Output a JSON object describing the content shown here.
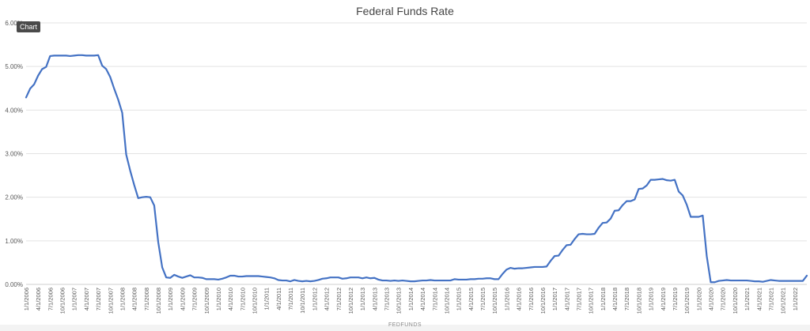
{
  "tooltip": "Chart",
  "colors": {
    "line": "#4472C4",
    "grid": "#e3e3e3",
    "text": "#595959"
  },
  "chart_data": {
    "type": "line",
    "title": "Federal Funds Rate",
    "xlabel": "FEDFUNDS",
    "ylabel": "",
    "ylim": [
      0,
      6
    ],
    "y_ticks": [
      "0.00%",
      "1.00%",
      "2.00%",
      "3.00%",
      "4.00%",
      "5.00%",
      "6.00%"
    ],
    "grid": true,
    "x_tick_labels": [
      "1/1/2006",
      "4/1/2006",
      "7/1/2006",
      "10/1/2006",
      "1/1/2007",
      "4/1/2007",
      "7/1/2007",
      "10/1/2007",
      "1/1/2008",
      "4/1/2008",
      "7/1/2008",
      "10/1/2008",
      "1/1/2009",
      "4/1/2009",
      "7/1/2009",
      "10/1/2009",
      "1/1/2010",
      "4/1/2010",
      "7/1/2010",
      "10/1/2010",
      "1/1/2011",
      "4/1/2011",
      "7/1/2011",
      "10/1/2011",
      "1/1/2012",
      "4/1/2012",
      "7/1/2012",
      "10/1/2012",
      "1/1/2013",
      "4/1/2013",
      "7/1/2013",
      "10/1/2013",
      "1/1/2014",
      "4/1/2014",
      "7/1/2014",
      "10/1/2014",
      "1/1/2015",
      "4/1/2015",
      "7/1/2015",
      "10/1/2015",
      "1/1/2016",
      "4/1/2016",
      "7/1/2016",
      "10/1/2016",
      "1/1/2017",
      "4/1/2017",
      "7/1/2017",
      "10/1/2017",
      "1/1/2018",
      "4/1/2018",
      "7/1/2018",
      "10/1/2018",
      "1/1/2019",
      "4/1/2019",
      "7/1/2019",
      "10/1/2019",
      "1/1/2020",
      "4/1/2020",
      "7/1/2020",
      "10/1/2020",
      "1/1/2021",
      "4/1/2021",
      "7/1/2021",
      "10/1/2021",
      "1/1/2022"
    ],
    "series": [
      {
        "values": [
          4.29,
          4.49,
          4.59,
          4.79,
          4.94,
          4.99,
          5.24,
          5.25,
          5.25,
          5.25,
          5.25,
          5.24,
          5.25,
          5.26,
          5.26,
          5.25,
          5.25,
          5.25,
          5.26,
          5.02,
          4.94,
          4.76,
          4.49,
          4.24,
          3.94,
          2.98,
          2.61,
          2.28,
          1.98,
          2.0,
          2.01,
          2.0,
          1.81,
          0.97,
          0.39,
          0.16,
          0.15,
          0.22,
          0.18,
          0.15,
          0.18,
          0.21,
          0.16,
          0.16,
          0.15,
          0.12,
          0.12,
          0.12,
          0.11,
          0.13,
          0.16,
          0.2,
          0.2,
          0.18,
          0.18,
          0.19,
          0.19,
          0.19,
          0.19,
          0.18,
          0.17,
          0.16,
          0.14,
          0.1,
          0.09,
          0.09,
          0.07,
          0.1,
          0.08,
          0.07,
          0.08,
          0.07,
          0.08,
          0.1,
          0.13,
          0.14,
          0.16,
          0.16,
          0.16,
          0.13,
          0.14,
          0.16,
          0.16,
          0.16,
          0.14,
          0.16,
          0.14,
          0.15,
          0.11,
          0.09,
          0.09,
          0.08,
          0.09,
          0.08,
          0.09,
          0.08,
          0.07,
          0.07,
          0.08,
          0.09,
          0.09,
          0.1,
          0.09,
          0.09,
          0.09,
          0.09,
          0.09,
          0.12,
          0.11,
          0.11,
          0.11,
          0.12,
          0.12,
          0.13,
          0.13,
          0.14,
          0.14,
          0.12,
          0.12,
          0.24,
          0.34,
          0.38,
          0.36,
          0.37,
          0.37,
          0.38,
          0.39,
          0.4,
          0.4,
          0.4,
          0.41,
          0.54,
          0.65,
          0.66,
          0.79,
          0.9,
          0.91,
          1.04,
          1.15,
          1.16,
          1.15,
          1.15,
          1.16,
          1.3,
          1.41,
          1.42,
          1.51,
          1.69,
          1.7,
          1.82,
          1.91,
          1.91,
          1.95,
          2.19,
          2.2,
          2.27,
          2.4,
          2.4,
          2.41,
          2.42,
          2.39,
          2.38,
          2.4,
          2.13,
          2.04,
          1.83,
          1.55,
          1.55,
          1.55,
          1.58,
          0.65,
          0.05,
          0.05,
          0.08,
          0.09,
          0.1,
          0.09,
          0.09,
          0.09,
          0.09,
          0.09,
          0.08,
          0.07,
          0.07,
          0.06,
          0.08,
          0.1,
          0.09,
          0.08,
          0.08,
          0.08,
          0.08,
          0.08,
          0.08,
          0.08,
          0.2
        ]
      }
    ]
  }
}
